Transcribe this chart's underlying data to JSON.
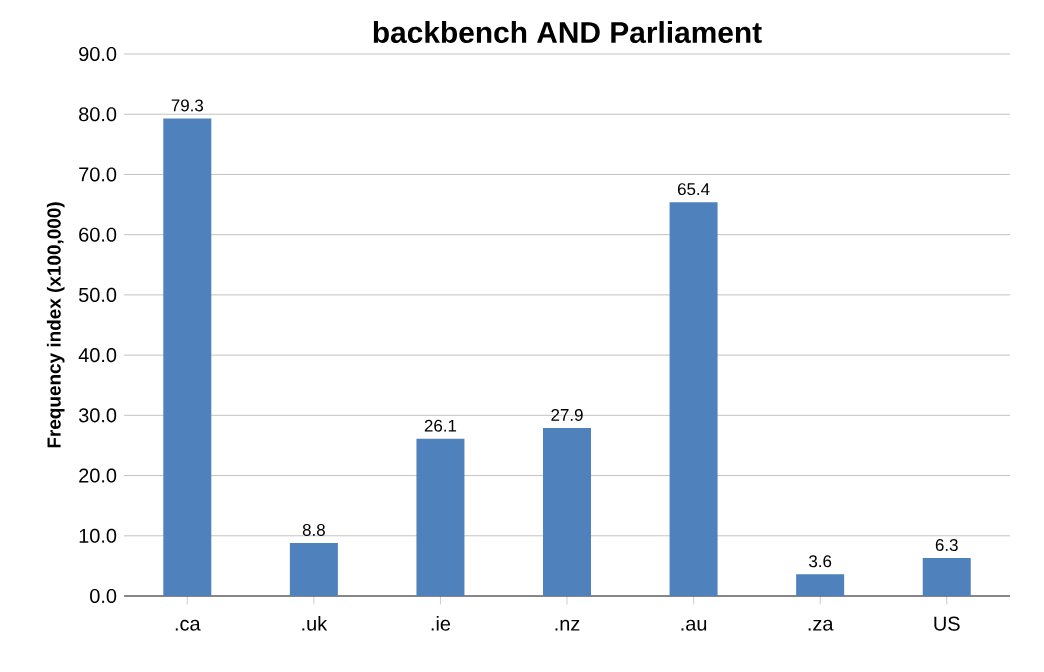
{
  "chart_data": {
    "type": "bar",
    "title": "backbench AND Parliament",
    "ylabel": "Frequency index (x100,000)",
    "categories": [
      ".ca",
      ".uk",
      ".ie",
      ".nz",
      ".au",
      ".za",
      "US"
    ],
    "values": [
      79.3,
      8.8,
      26.1,
      27.9,
      65.4,
      3.6,
      6.3
    ],
    "color": "#4f81bd",
    "data_labels": true,
    "grid": "y",
    "ylim": [
      0,
      90
    ],
    "yticks": [
      {
        "value": 0,
        "label": "0.0"
      },
      {
        "value": 10,
        "label": "10.0"
      },
      {
        "value": 20,
        "label": "20.0"
      },
      {
        "value": 30,
        "label": "30.0"
      },
      {
        "value": 40,
        "label": "40.0"
      },
      {
        "value": 50,
        "label": "50.0"
      },
      {
        "value": 60,
        "label": "60.0"
      },
      {
        "value": 70,
        "label": "70.0"
      },
      {
        "value": 80,
        "label": "80.0"
      },
      {
        "value": 90,
        "label": "90.0"
      }
    ]
  }
}
